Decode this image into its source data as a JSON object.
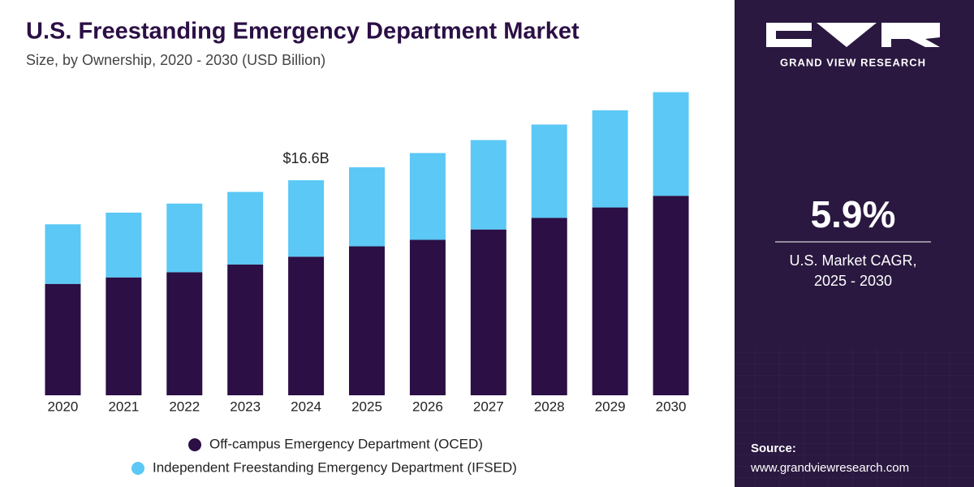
{
  "chart_data": {
    "type": "stacked-bar",
    "title": "U.S. Freestanding Emergency Department Market",
    "subtitle": "Size, by Ownership, 2020 - 2030 (USD Billion)",
    "categories": [
      "2020",
      "2021",
      "2022",
      "2023",
      "2024",
      "2025",
      "2026",
      "2027",
      "2028",
      "2029",
      "2030"
    ],
    "series": [
      {
        "name": "Off-campus Emergency Department (OCED)",
        "color": "#2b0f45",
        "values": [
          8.6,
          9.1,
          9.5,
          10.1,
          10.7,
          11.5,
          12.0,
          12.8,
          13.7,
          14.5,
          15.4
        ]
      },
      {
        "name": "Independent Freestanding Emergency Department (IFSED)",
        "color": "#5bc8f5",
        "values": [
          4.6,
          5.0,
          5.3,
          5.6,
          5.9,
          6.1,
          6.7,
          6.9,
          7.2,
          7.5,
          8.0
        ]
      }
    ],
    "annotations": [
      {
        "label": "$16.6B",
        "value": 16.6,
        "category": "2024"
      }
    ],
    "ylim": [
      0,
      25
    ]
  },
  "sidebar": {
    "brand": "GRAND VIEW RESEARCH",
    "cagr": "5.9%",
    "cagr_label": [
      "U.S. Market CAGR,",
      "2025 - 2030"
    ],
    "source_label": "Source:",
    "source_url": "www.grandviewresearch.com"
  }
}
